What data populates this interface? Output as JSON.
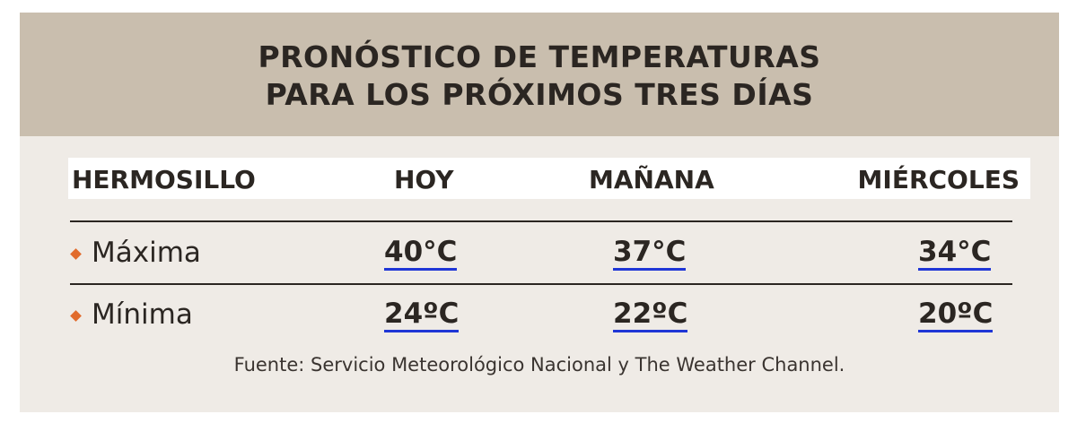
{
  "chart_data": {
    "type": "table",
    "title_line1": "PRONÓSTICO DE TEMPERATURAS",
    "title_line2": "PARA LOS PRÓXIMOS TRES DÍAS",
    "columns": [
      "HERMOSILLO",
      "HOY",
      "MAÑANA",
      "MIÉRCOLES"
    ],
    "rows": [
      {
        "label": "Máxima",
        "values": [
          "40°C",
          "37°C",
          "34°C"
        ]
      },
      {
        "label": "Mínima",
        "values": [
          "24ºC",
          "22ºC",
          "20ºC"
        ]
      }
    ],
    "source": "Fuente: Servicio Meteorológico Nacional y The Weather Channel."
  },
  "colors": {
    "title_band": "#c9beae",
    "card_background": "#efebe6",
    "header_background": "#ffffff",
    "bullet": "#e16b2c",
    "value_underline": "#1f36d6",
    "text": "#2b2622"
  },
  "icons": {
    "row_bullet": "diamond-bullet-icon"
  }
}
